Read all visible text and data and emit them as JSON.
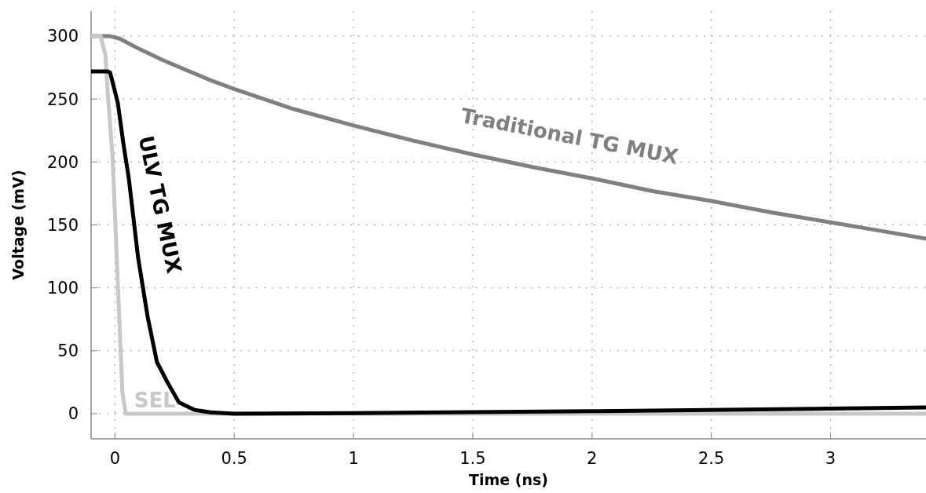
{
  "chart_data": {
    "type": "line",
    "xlabel": "Time (ns)",
    "ylabel": "Voltage (mV)",
    "xlim": [
      -0.1,
      3.4
    ],
    "ylim": [
      -20,
      320
    ],
    "xticks": [
      0,
      0.5,
      1,
      1.5,
      2,
      2.5,
      3
    ],
    "yticks": [
      0,
      50,
      100,
      150,
      200,
      250,
      300
    ],
    "grid": true,
    "series": [
      {
        "name": "Traditional TG MUX",
        "color": "#808080",
        "x": [
          -0.1,
          -0.02,
          0.02,
          0.1,
          0.2,
          0.3,
          0.4,
          0.5,
          0.75,
          1,
          1.25,
          1.5,
          1.75,
          2,
          2.25,
          2.5,
          2.75,
          3,
          3.25,
          3.4
        ],
        "values": [
          300,
          300,
          298,
          290,
          281,
          273,
          265,
          258,
          242,
          229,
          217,
          206,
          196,
          187,
          177,
          169,
          160,
          152,
          144,
          139
        ]
      },
      {
        "name": "SEL",
        "color": "#c8c8c8",
        "x": [
          -0.1,
          -0.06,
          -0.04,
          -0.03,
          -0.01,
          0.012,
          0.031,
          0.045,
          3.4
        ],
        "values": [
          300,
          300,
          285,
          254,
          204,
          104,
          17,
          0,
          0
        ]
      },
      {
        "name": "ULV TG MUX",
        "color": "#000000",
        "x": [
          -0.1,
          -0.03,
          -0.02,
          0.012,
          0.035,
          0.058,
          0.097,
          0.137,
          0.176,
          0.22,
          0.268,
          0.334,
          0.4,
          0.5,
          1,
          2,
          3,
          3.4
        ],
        "values": [
          272,
          272,
          271,
          247,
          215,
          187,
          124,
          77,
          41,
          25,
          9,
          3,
          1,
          0,
          0.5,
          2,
          4,
          5
        ]
      }
    ]
  }
}
